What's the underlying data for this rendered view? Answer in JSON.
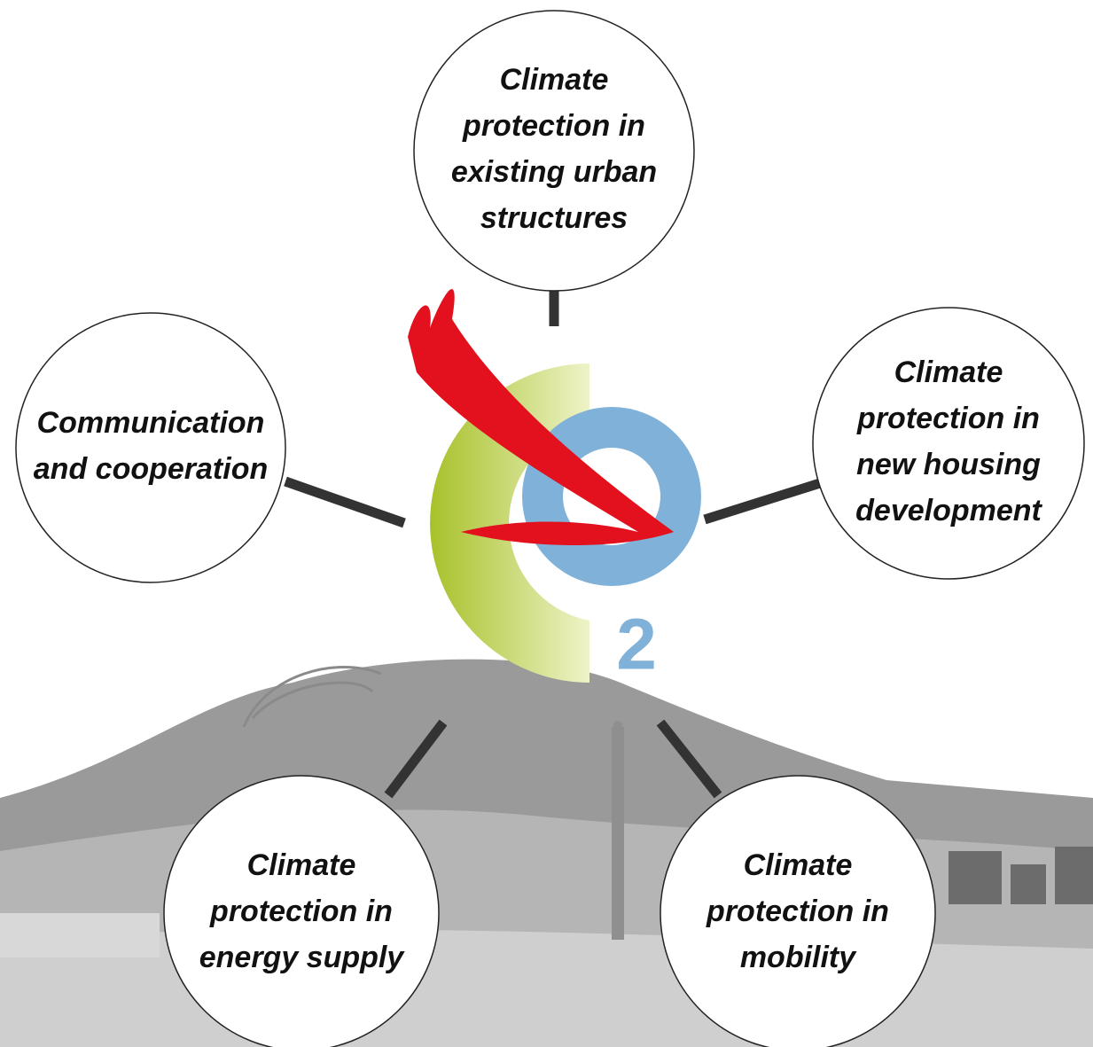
{
  "logo": {
    "subscript": "2"
  },
  "nodes": [
    {
      "lines": [
        "Climate",
        "protection in",
        "existing urban",
        "structures"
      ]
    },
    {
      "lines": [
        "Communication",
        "and cooperation"
      ]
    },
    {
      "lines": [
        "Climate",
        "protection in",
        "new housing",
        "development"
      ]
    },
    {
      "lines": [
        "Climate",
        "protection in",
        "energy supply"
      ]
    },
    {
      "lines": [
        "Climate",
        "protection in",
        "mobility"
      ]
    }
  ]
}
